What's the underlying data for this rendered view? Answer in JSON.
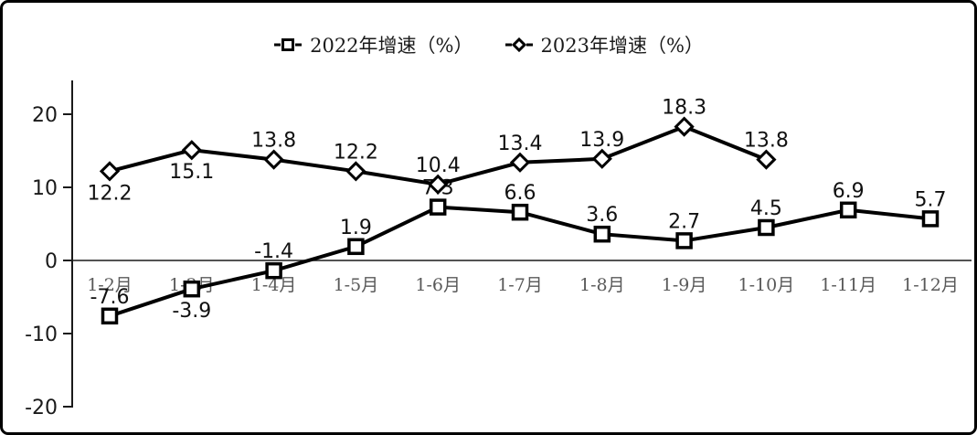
{
  "legend": {
    "items": [
      {
        "label": "2022年增速（%）",
        "marker": "square"
      },
      {
        "label": "2023年增速（%）",
        "marker": "diamond"
      }
    ]
  },
  "chart_data": {
    "type": "line",
    "title": "",
    "xlabel": "",
    "ylabel": "",
    "categories": [
      "1-2月",
      "1-3月",
      "1-4月",
      "1-5月",
      "1-6月",
      "1-7月",
      "1-8月",
      "1-9月",
      "1-10月",
      "1-11月",
      "1-12月"
    ],
    "series": [
      {
        "name": "2022年增速（%）",
        "marker": "square",
        "values": [
          -7.6,
          -3.9,
          -1.4,
          1.9,
          7.3,
          6.6,
          3.6,
          2.7,
          4.5,
          6.9,
          5.7
        ],
        "label_positions": [
          "above",
          "below",
          "above",
          "above",
          "above",
          "above",
          "above",
          "above",
          "above",
          "above",
          "above"
        ]
      },
      {
        "name": "2023年增速（%）",
        "marker": "diamond",
        "values": [
          12.2,
          15.1,
          13.8,
          12.2,
          10.4,
          13.4,
          13.9,
          18.3,
          13.8
        ],
        "label_positions": [
          "below",
          "below",
          "above",
          "above",
          "above",
          "above",
          "above",
          "above",
          "above"
        ]
      }
    ],
    "ylim": [
      -20,
      20
    ],
    "y_ticks": [
      20,
      10,
      0,
      -10,
      -20
    ],
    "grid": false,
    "legend_position": "top",
    "colors": {
      "line": "#000000",
      "marker_fill": "#ffffff",
      "data_label": "#111111",
      "tick_label": "#1a1a1a",
      "category_label": "#595959",
      "axis": "#1a1a1a",
      "background": "#ffffff",
      "border": "#000000"
    }
  }
}
